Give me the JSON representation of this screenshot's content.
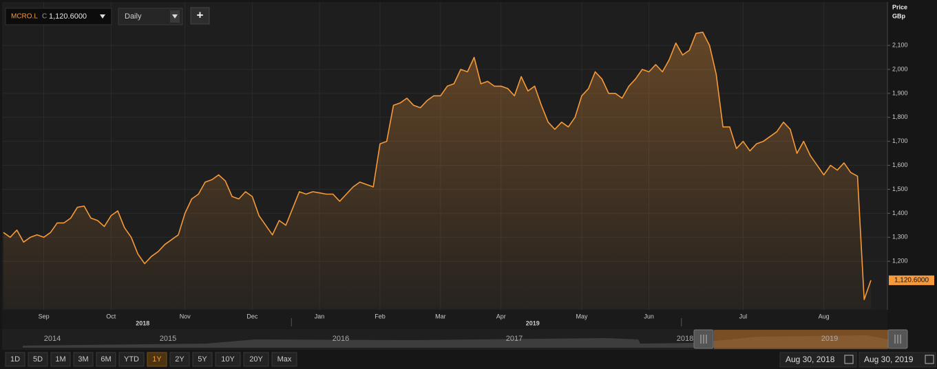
{
  "header": {
    "ticker": "MCRO.L",
    "close_prefix": "C",
    "close_value": "1,120.6000",
    "interval": "Daily",
    "add": "+"
  },
  "chart_data": {
    "type": "line",
    "y_axis_label": [
      "Price",
      "GBp"
    ],
    "color": "#f79a3a",
    "grid": true,
    "years": [
      {
        "label": "2018",
        "after": "Oct"
      },
      {
        "label": "2019",
        "after": "Apr"
      }
    ],
    "categories": [
      null,
      null,
      null,
      null,
      null,
      null,
      "Sep",
      null,
      null,
      null,
      null,
      null,
      null,
      null,
      null,
      null,
      "Oct",
      null,
      null,
      null,
      null,
      null,
      null,
      null,
      null,
      null,
      null,
      "Nov",
      null,
      null,
      null,
      null,
      null,
      null,
      null,
      null,
      null,
      "Dec",
      null,
      null,
      null,
      null,
      null,
      null,
      null,
      null,
      null,
      "Jan",
      null,
      null,
      null,
      null,
      null,
      null,
      null,
      null,
      "Feb",
      null,
      null,
      null,
      null,
      null,
      null,
      null,
      null,
      "Mar",
      null,
      null,
      null,
      null,
      null,
      null,
      null,
      null,
      "Apr",
      null,
      null,
      null,
      null,
      null,
      null,
      null,
      null,
      null,
      null,
      null,
      "May",
      null,
      null,
      null,
      null,
      null,
      null,
      null,
      null,
      null,
      "Jun",
      null,
      null,
      null,
      null,
      null,
      null,
      null,
      null,
      null,
      null,
      null,
      null,
      null,
      "Jul",
      null,
      null,
      null,
      null,
      null,
      null,
      null,
      null,
      null,
      null,
      null,
      "Aug",
      null,
      null,
      null,
      null,
      null,
      null,
      null
    ],
    "values": [
      1320,
      1300,
      1330,
      1280,
      1300,
      1310,
      1300,
      1320,
      1360,
      1360,
      1380,
      1425,
      1430,
      1380,
      1370,
      1345,
      1390,
      1410,
      1340,
      1300,
      1230,
      1190,
      1220,
      1240,
      1270,
      1290,
      1310,
      1400,
      1460,
      1480,
      1530,
      1540,
      1560,
      1535,
      1470,
      1460,
      1490,
      1470,
      1390,
      1350,
      1310,
      1370,
      1350,
      1420,
      1490,
      1480,
      1490,
      1485,
      1480,
      1480,
      1450,
      1480,
      1510,
      1530,
      1520,
      1510,
      1690,
      1700,
      1850,
      1860,
      1880,
      1850,
      1840,
      1870,
      1890,
      1890,
      1930,
      1940,
      2000,
      1990,
      2050,
      1940,
      1950,
      1930,
      1930,
      1920,
      1890,
      1970,
      1910,
      1930,
      1850,
      1780,
      1750,
      1780,
      1760,
      1800,
      1890,
      1920,
      1990,
      1960,
      1900,
      1900,
      1880,
      1930,
      1960,
      2000,
      1990,
      2020,
      1990,
      2040,
      2110,
      2060,
      2080,
      2150,
      2155,
      2100,
      1980,
      1760,
      1760,
      1670,
      1700,
      1660,
      1690,
      1700,
      1720,
      1740,
      1780,
      1750,
      1650,
      1700,
      1640,
      1600,
      1560,
      1600,
      1580,
      1610,
      1570,
      1555,
      1040,
      1120.6
    ],
    "last_price": {
      "value": 1120.6,
      "label": "1,120.6000"
    },
    "ylim": [
      1000,
      2275
    ],
    "yticks": [
      {
        "value": 1200,
        "label": "1,200"
      },
      {
        "value": 1300,
        "label": "1,300"
      },
      {
        "value": 1400,
        "label": "1,400"
      },
      {
        "value": 1500,
        "label": "1,500"
      },
      {
        "value": 1600,
        "label": "1,600"
      },
      {
        "value": 1700,
        "label": "1,700"
      },
      {
        "value": 1800,
        "label": "1,800"
      },
      {
        "value": 1900,
        "label": "1,900"
      },
      {
        "value": 2000,
        "label": "2,000"
      },
      {
        "value": 2100,
        "label": "2,100"
      }
    ]
  },
  "navigator": {
    "years": [
      "2014",
      "2015",
      "2016",
      "2017",
      "2018",
      "2019"
    ]
  },
  "range_buttons": [
    "1D",
    "5D",
    "1M",
    "3M",
    "6M",
    "YTD",
    "1Y",
    "2Y",
    "5Y",
    "10Y",
    "20Y",
    "Max"
  ],
  "active_range": "1Y",
  "date_from": "Aug 30, 2018",
  "date_to": "Aug 30, 2019"
}
